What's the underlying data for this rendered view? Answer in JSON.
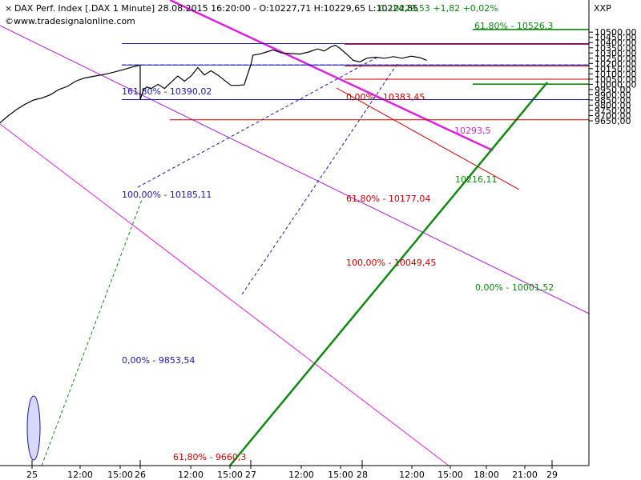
{
  "header": {
    "title": "DAX Perf. Index [.DAX  1 Minute] 28.08.2015 16:20:00 - O:10227,71 H:10229,65 L:10224,85",
    "change": "C:10229,53 +1,82 +0,02%",
    "watermark": "www.tradesignalonline.com",
    "symbol": "XXP"
  },
  "colors": {
    "price": "#000000",
    "blue": "#1a1aa8",
    "red": "#cc0000",
    "green": "#118811",
    "magenta": "#dd22dd",
    "purple": "#aa22cc",
    "change": "#118811"
  },
  "chart_data": {
    "type": "line",
    "y_range": [
      9630,
      10570
    ],
    "y_ticks": [
      "10500,00",
      "10450,00",
      "10400,00",
      "10350,00",
      "10300,00",
      "10250,00",
      "10200,00",
      "10150,00",
      "10100,00",
      "10050,00",
      "10000,00",
      "9950,00",
      "9900,00",
      "9850,00",
      "9800,00",
      "9750,00",
      "9700,00",
      "9650,00"
    ],
    "x_ticks": [
      "25",
      "12:00",
      "15:00",
      "26",
      "12:00",
      "15:00",
      "27",
      "12:00",
      "15:00",
      "28",
      "12:00",
      "15:00",
      "18:00",
      "21:00",
      "29"
    ],
    "price_path": [
      [
        0,
        9630
      ],
      [
        0.06,
        9700
      ],
      [
        0.12,
        9760
      ],
      [
        0.18,
        9810
      ],
      [
        0.24,
        9850
      ],
      [
        0.3,
        9870
      ],
      [
        0.36,
        9900
      ],
      [
        0.42,
        9950
      ],
      [
        0.48,
        9980
      ],
      [
        0.54,
        10030
      ],
      [
        0.6,
        10060
      ],
      [
        0.68,
        10080
      ],
      [
        0.76,
        10100
      ],
      [
        0.82,
        10120
      ],
      [
        0.88,
        10140
      ],
      [
        0.94,
        10165
      ],
      [
        1.0,
        10185
      ],
      [
        1.0,
        9853
      ],
      [
        1.03,
        9950
      ],
      [
        1.06,
        9975
      ],
      [
        1.1,
        9960
      ],
      [
        1.16,
        10000
      ],
      [
        1.22,
        9960
      ],
      [
        1.28,
        10020
      ],
      [
        1.34,
        10080
      ],
      [
        1.4,
        10030
      ],
      [
        1.46,
        10080
      ],
      [
        1.52,
        10160
      ],
      [
        1.58,
        10090
      ],
      [
        1.64,
        10130
      ],
      [
        1.7,
        10090
      ],
      [
        1.76,
        10040
      ],
      [
        1.82,
        9990
      ],
      [
        1.88,
        9990
      ],
      [
        1.94,
        9995
      ],
      [
        2.0,
        10186
      ],
      [
        2.02,
        10280
      ],
      [
        2.08,
        10290
      ],
      [
        2.14,
        10310
      ],
      [
        2.2,
        10330
      ],
      [
        2.28,
        10300
      ],
      [
        2.36,
        10295
      ],
      [
        2.44,
        10290
      ],
      [
        2.52,
        10310
      ],
      [
        2.6,
        10340
      ],
      [
        2.66,
        10320
      ],
      [
        2.72,
        10360
      ],
      [
        2.76,
        10375
      ],
      [
        2.8,
        10345
      ],
      [
        2.86,
        10290
      ],
      [
        2.92,
        10230
      ],
      [
        2.98,
        10215
      ],
      [
        3.04,
        10250
      ],
      [
        3.12,
        10260
      ],
      [
        3.2,
        10250
      ],
      [
        3.28,
        10265
      ],
      [
        3.36,
        10250
      ],
      [
        3.44,
        10270
      ],
      [
        3.52,
        10255
      ],
      [
        3.58,
        10230
      ]
    ],
    "levels": [
      {
        "name": "161,80% - 10390,02",
        "value": 10390.02,
        "color_key": "blue"
      },
      {
        "name": "100,00% - 10185,11",
        "value": 10185.11,
        "color_key": "blue"
      },
      {
        "name": "0,00% - 9853,54",
        "value": 9853.54,
        "color_key": "blue"
      },
      {
        "name": "0,00% - 10383,45",
        "value": 10383.45,
        "color_key": "red"
      },
      {
        "name": "61,80% - 10177,04",
        "value": 10177.04,
        "color_key": "red"
      },
      {
        "name": "100,00% - 10049,45",
        "value": 10049.45,
        "color_key": "red"
      },
      {
        "name": "61,80% - 9660,3",
        "value": 9660.3,
        "color_key": "red"
      },
      {
        "name": "61,80% - 10526,3",
        "value": 10526.3,
        "color_key": "green"
      },
      {
        "name": "0,00% - 10001,52",
        "value": 10001.52,
        "color_key": "green"
      }
    ],
    "annotations": [
      {
        "text": "10293,5",
        "color_key": "magenta"
      },
      {
        "text": "10216,11",
        "color_key": "green"
      }
    ]
  }
}
